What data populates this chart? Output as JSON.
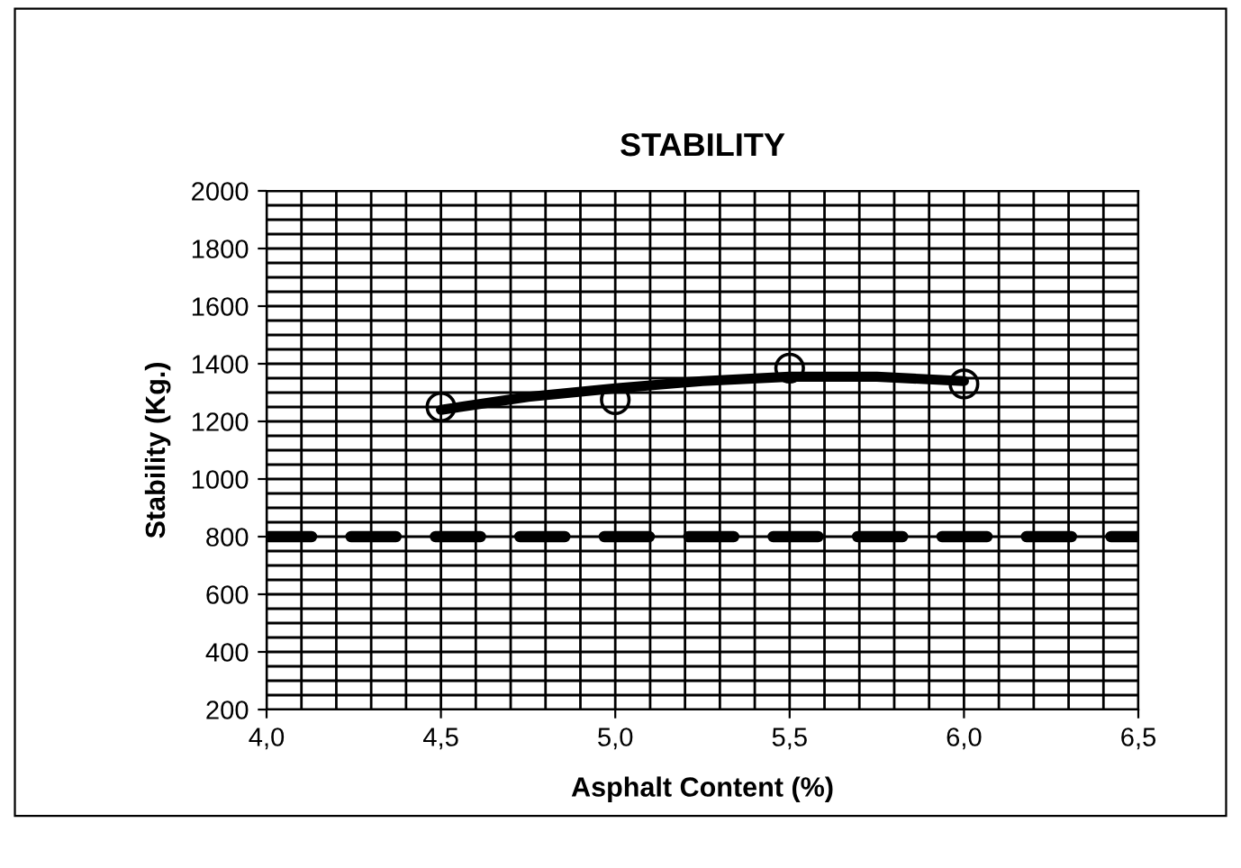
{
  "chart_data": {
    "type": "line",
    "title": "STABILITY",
    "xlabel": "Asphalt Content (%)",
    "ylabel": "Stability (Kg.)",
    "series": [
      {
        "type": "scatter",
        "color": "#000000",
        "marker": "circle",
        "x": [
          4.5,
          5.0,
          5.5,
          6.0
        ],
        "values": [
          1250,
          1275,
          1385,
          1330
        ]
      },
      {
        "color": "#000000",
        "marker": "none",
        "x": [
          4.5,
          4.75,
          5.0,
          5.25,
          5.5,
          5.75,
          6.0
        ],
        "values": [
          1240,
          1285,
          1315,
          1340,
          1355,
          1355,
          1340
        ]
      }
    ],
    "xlim": [
      4.0,
      6.5
    ],
    "xticks": [
      {
        "value": 4.0,
        "label": "4,0"
      },
      {
        "value": 4.5,
        "label": "4,5"
      },
      {
        "value": 5.0,
        "label": "5,0"
      },
      {
        "value": 5.5,
        "label": "5,5"
      },
      {
        "value": 6.0,
        "label": "6,0"
      },
      {
        "value": 6.5,
        "label": "6,5"
      }
    ],
    "ylim": [
      200,
      2000
    ],
    "yticks": [
      200,
      400,
      600,
      800,
      1000,
      1200,
      1400,
      1600,
      1800,
      2000
    ],
    "ref_lines": [
      {
        "axis": "y",
        "value": 800,
        "color": "#000000",
        "line_style": "dashed"
      }
    ],
    "grid": true,
    "legend": false
  }
}
